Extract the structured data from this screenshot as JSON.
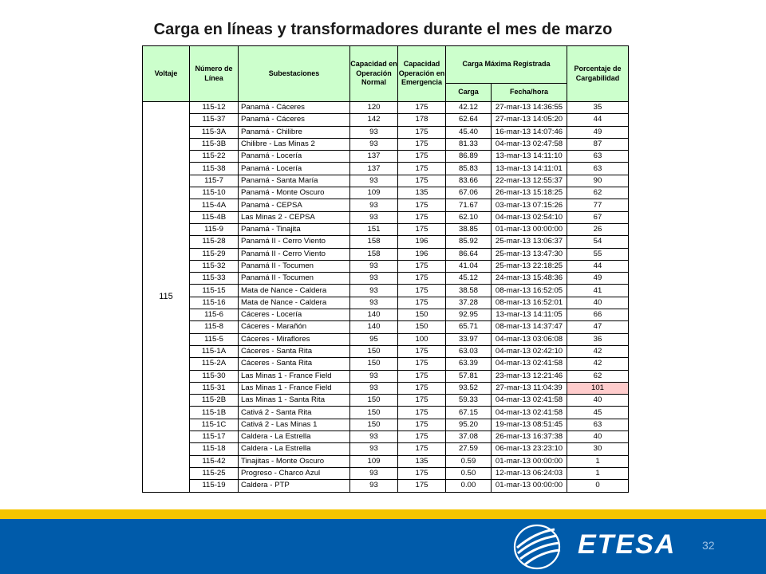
{
  "title": "Carga en líneas y transformadores durante el mes de marzo",
  "table": {
    "headers": {
      "voltaje": "Voltaje",
      "numero_linea": "Número de Línea",
      "subestaciones": "Subestaciones",
      "cap_normal": "Capacidad en Operación Normal",
      "cap_emergencia": "Capacidad Operación en Emergencia",
      "carga_maxima": "Carga Máxima Registrada",
      "carga": "Carga",
      "fecha_hora": "Fecha/hora",
      "porcentaje": "Porcentaje de Cargabilidad"
    },
    "voltage_value": "115",
    "rows": [
      [
        "115-12",
        "Panamá - Cáceres",
        "120",
        "175",
        "42.12",
        "27-mar-13 14:36:55",
        "35"
      ],
      [
        "115-37",
        "Panamá - Cáceres",
        "142",
        "178",
        "62.64",
        "27-mar-13 14:05:20",
        "44"
      ],
      [
        "115-3A",
        "Panamá - Chilibre",
        "93",
        "175",
        "45.40",
        "16-mar-13 14:07:46",
        "49"
      ],
      [
        "115-3B",
        "Chilibre - Las Minas 2",
        "93",
        "175",
        "81.33",
        "04-mar-13 02:47:58",
        "87"
      ],
      [
        "115-22",
        "Panamá - Locería",
        "137",
        "175",
        "86.89",
        "13-mar-13 14:11:10",
        "63"
      ],
      [
        "115-38",
        "Panamá - Locería",
        "137",
        "175",
        "85.83",
        "13-mar-13 14:11:01",
        "63"
      ],
      [
        "115-7",
        "Panamá - Santa María",
        "93",
        "175",
        "83.66",
        "22-mar-13 12:55:37",
        "90"
      ],
      [
        "115-10",
        "Panamá - Monte Oscuro",
        "109",
        "135",
        "67.06",
        "26-mar-13 15:18:25",
        "62"
      ],
      [
        "115-4A",
        "Panamá - CEPSA",
        "93",
        "175",
        "71.67",
        "03-mar-13 07:15:26",
        "77"
      ],
      [
        "115-4B",
        "Las Minas 2 - CEPSA",
        "93",
        "175",
        "62.10",
        "04-mar-13 02:54:10",
        "67"
      ],
      [
        "115-9",
        "Panamá - Tinajita",
        "151",
        "175",
        "38.85",
        "01-mar-13 00:00:00",
        "26"
      ],
      [
        "115-28",
        "Panamá II - Cerro Viento",
        "158",
        "196",
        "85.92",
        "25-mar-13 13:06:37",
        "54"
      ],
      [
        "115-29",
        "Panamá II - Cerro Viento",
        "158",
        "196",
        "86.64",
        "25-mar-13 13:47:30",
        "55"
      ],
      [
        "115-32",
        "Panamá II - Tocumen",
        "93",
        "175",
        "41.04",
        "25-mar-13 22:18:25",
        "44"
      ],
      [
        "115-33",
        "Panamá II - Tocumen",
        "93",
        "175",
        "45.12",
        "24-mar-13 15:48:36",
        "49"
      ],
      [
        "115-15",
        "Mata de Nance - Caldera",
        "93",
        "175",
        "38.58",
        "08-mar-13 16:52:05",
        "41"
      ],
      [
        "115-16",
        "Mata de Nance - Caldera",
        "93",
        "175",
        "37.28",
        "08-mar-13 16:52:01",
        "40"
      ],
      [
        "115-6",
        "Cáceres - Locería",
        "140",
        "150",
        "92.95",
        "13-mar-13 14:11:05",
        "66"
      ],
      [
        "115-8",
        "Cáceres - Marañón",
        "140",
        "150",
        "65.71",
        "08-mar-13 14:37:47",
        "47"
      ],
      [
        "115-5",
        "Cáceres - Miraflores",
        "95",
        "100",
        "33.97",
        "04-mar-13 03:06:08",
        "36"
      ],
      [
        "115-1A",
        "Cáceres - Santa Rita",
        "150",
        "175",
        "63.03",
        "04-mar-13 02:42:10",
        "42"
      ],
      [
        "115-2A",
        "Cáceres - Santa Rita",
        "150",
        "175",
        "63.39",
        "04-mar-13 02:41:58",
        "42"
      ],
      [
        "115-30",
        "Las Minas 1 - France Field",
        "93",
        "175",
        "57.81",
        "23-mar-13 12:21:46",
        "62"
      ],
      [
        "115-31",
        "Las Minas 1 - France Field",
        "93",
        "175",
        "93.52",
        "27-mar-13 11:04:39",
        "101"
      ],
      [
        "115-2B",
        "Las Minas 1 - Santa Rita",
        "150",
        "175",
        "59.33",
        "04-mar-13 02:41:58",
        "40"
      ],
      [
        "115-1B",
        "Cativá 2 - Santa Rita",
        "150",
        "175",
        "67.15",
        "04-mar-13 02:41:58",
        "45"
      ],
      [
        "115-1C",
        "Cativá 2 - Las Minas 1",
        "150",
        "175",
        "95.20",
        "19-mar-13 08:51:45",
        "63"
      ],
      [
        "115-17",
        "Caldera - La Estrella",
        "93",
        "175",
        "37.08",
        "26-mar-13 16:37:38",
        "40"
      ],
      [
        "115-18",
        "Caldera - La Estrella",
        "93",
        "175",
        "27.59",
        "06-mar-13 23:23:10",
        "30"
      ],
      [
        "115-42",
        "Tinajitas - Monte Oscuro",
        "109",
        "135",
        "0.59",
        "01-mar-13 00:00:00",
        "1"
      ],
      [
        "115-25",
        "Progreso - Charco Azul",
        "93",
        "175",
        "0.50",
        "12-mar-13 06:24:03",
        "1"
      ],
      [
        "115-19",
        "Caldera - PTP",
        "93",
        "175",
        "0.00",
        "01-mar-13 00:00:00",
        "0"
      ]
    ],
    "highlight_row_index": 23,
    "highlight_color": "#ffcccc",
    "header_color": "#ccffcc"
  },
  "footer": {
    "logo_text": "ETESA",
    "page_number": "32",
    "band_color": "#005baa",
    "stripe_color": "#f5c400"
  }
}
